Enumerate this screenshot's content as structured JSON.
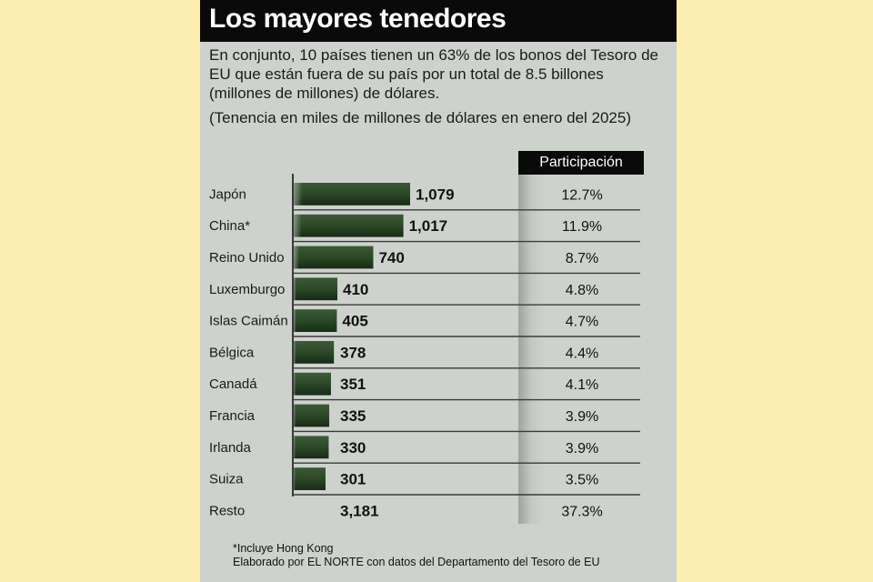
{
  "header": {
    "title": "Los mayores tenedores",
    "intro": "En conjunto, 10 países tienen un 63% de los bonos del Tesoro de EU que están fuera de su país por un total de 8.5 billones (millones de millones) de dólares.",
    "note": "(Tenencia en miles de millones de dólares en enero del 2025)"
  },
  "colors": {
    "background": "#fbeeb0",
    "panel": "#cdd3cc",
    "bar": "#1f3a1c",
    "title_bg": "#0a0a0a"
  },
  "chart_data": {
    "type": "bar",
    "orientation": "horizontal",
    "title": "Los mayores tenedores",
    "subtitle": "(Tenencia en miles de millones de dólares en enero del 2025)",
    "unit": "miles de millones de dólares",
    "categories": [
      "Japón",
      "China*",
      "Reino Unido",
      "Luxemburgo",
      "Islas Caimán",
      "Bélgica",
      "Canadá",
      "Francia",
      "Irlanda",
      "Suiza",
      "Resto"
    ],
    "values": [
      1079,
      1017,
      740,
      410,
      405,
      378,
      351,
      335,
      330,
      301,
      3181
    ],
    "value_labels": [
      "1,079",
      "1,017",
      "740",
      "410",
      "405",
      "378",
      "351",
      "335",
      "330",
      "301",
      "3,181"
    ],
    "bar_drawn": [
      true,
      true,
      true,
      true,
      true,
      true,
      true,
      true,
      true,
      true,
      false
    ],
    "share_header": "Participación",
    "shares": [
      "12.7%",
      "11.9%",
      "8.7%",
      "4.8%",
      "4.7%",
      "4.4%",
      "4.1%",
      "3.9%",
      "3.9%",
      "3.5%",
      "37.3%"
    ],
    "xlim": [
      0,
      1079
    ]
  },
  "footer": {
    "footnote": "*Incluye Hong Kong",
    "source": "Elaborado por EL NORTE con datos del Departamento del Tesoro de EU"
  }
}
